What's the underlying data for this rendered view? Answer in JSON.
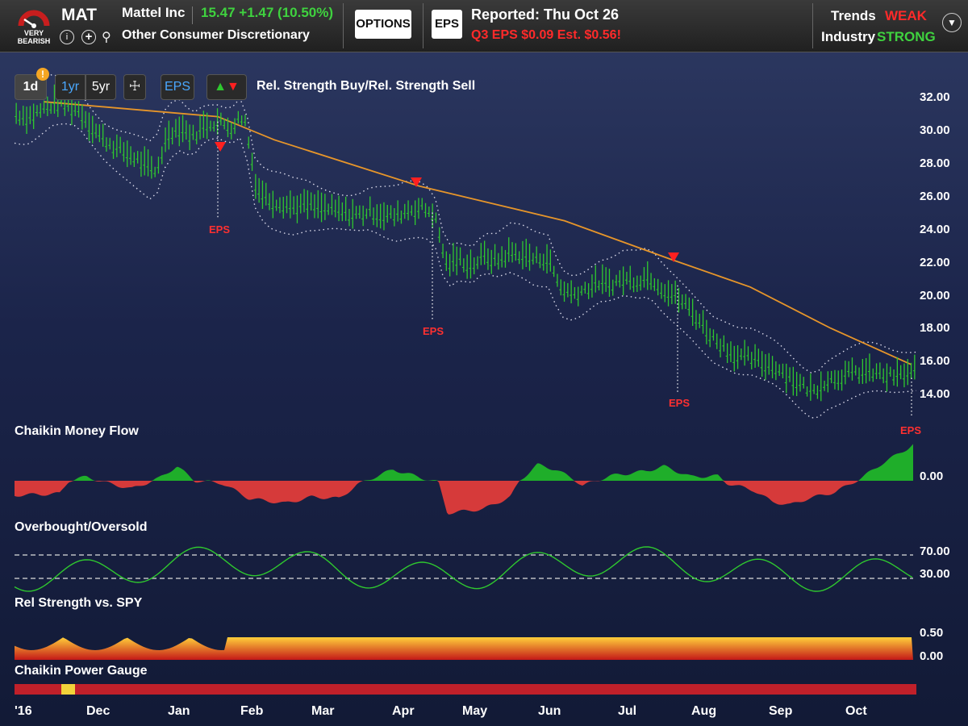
{
  "header": {
    "rating": "VERY BEARISH",
    "ticker": "MAT",
    "company": "Mattel Inc",
    "price": "15.47",
    "change": "+1.47",
    "change_pct": "(10.50%)",
    "industry": "Other Consumer Discretionary",
    "options_label": "OPTIONS",
    "eps_button_label": "EPS",
    "reported_label": "Reported:",
    "reported_date": "Thu Oct 26",
    "eps_line": "Q3 EPS $0.09  Est. $0.56",
    "eps_alert_mark": "!",
    "trends_label": "Trends",
    "trends_value": "WEAK",
    "industry_label": "Industry",
    "industry_value": "STRONG"
  },
  "toolbar": {
    "period_1d": "1d",
    "period_1yr": "1yr",
    "period_5yr": "5yr",
    "eps_toggle": "EPS",
    "alert_badge": "!",
    "rs_signal_label": "Rel. Strength Buy/Rel. Strength Sell"
  },
  "panels": {
    "cmf": "Chaikin Money Flow",
    "obos": "Overbought/Oversold",
    "rs": "Rel Strength vs. SPY",
    "power": "Chaikin Power Gauge"
  },
  "axes": {
    "price": [
      "32.00",
      "30.00",
      "28.00",
      "26.00",
      "24.00",
      "22.00",
      "20.00",
      "18.00",
      "16.00",
      "14.00"
    ],
    "cmf": [
      "0.00"
    ],
    "obos": [
      "70.00",
      "30.00"
    ],
    "rs": [
      "0.50",
      "0.00"
    ]
  },
  "eps_label": "EPS",
  "months": [
    "'16",
    "Dec",
    "Jan",
    "Feb",
    "Mar",
    "Apr",
    "May",
    "Jun",
    "Jul",
    "Aug",
    "Sep",
    "Oct"
  ],
  "colors": {
    "bull_green": "#2fc82f",
    "bear_red": "#e84040",
    "ma_orange": "#e6952a",
    "sell_arrow": "#ff2020",
    "gauge_red": "#c0202a",
    "gauge_yellow": "#f2d23a"
  },
  "chart_data": {
    "type": "line",
    "series": [
      {
        "values": [
          31.0,
          30.8,
          31.2,
          31.6,
          31.5,
          31.2,
          30.2,
          29.4,
          28.9,
          28.5,
          28.0,
          27.4,
          29.8,
          30.2,
          29.6,
          30.4,
          30.5,
          30.2,
          30.9,
          26.5,
          25.8,
          25.6,
          25.4,
          25.5,
          25.3,
          25.2,
          25.0,
          24.9,
          25.1,
          24.9,
          24.8,
          25.2,
          25.3,
          25.0,
          21.9,
          22.2,
          21.8,
          22.4,
          22.1,
          22.6,
          22.5,
          22.2,
          22.3,
          20.5,
          20.1,
          20.4,
          20.8,
          20.7,
          21.0,
          20.9,
          21.2,
          20.5,
          20.0,
          19.4,
          18.5,
          17.5,
          16.9,
          16.3,
          16.2,
          15.9,
          15.7,
          15.2,
          14.6,
          14.2,
          14.9,
          15.1,
          15.3,
          15.4,
          15.3,
          15.1,
          15.2,
          15.47
        ]
      }
    ],
    "sell_signals": 3,
    "eps_events": 4,
    "ylim": [
      14,
      32
    ]
  }
}
